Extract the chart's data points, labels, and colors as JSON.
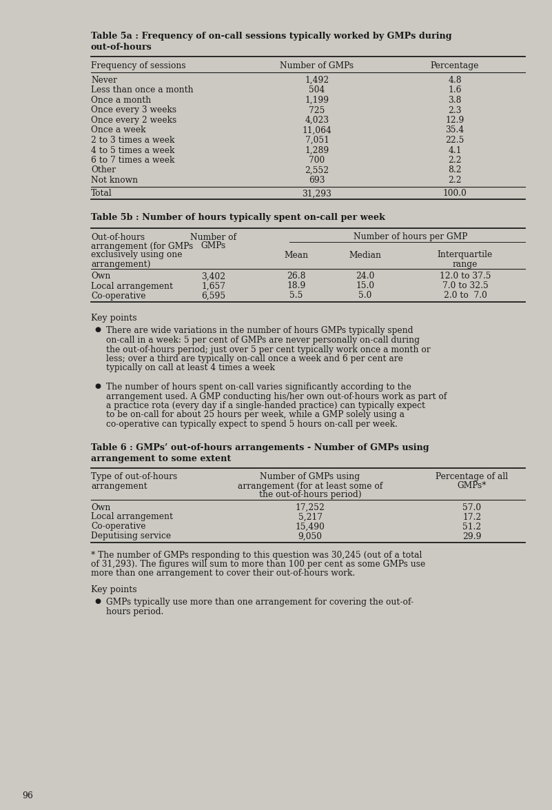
{
  "bg_color": "#ccc9c2",
  "text_color": "#1a1a1a",
  "page_number": "96",
  "table5a_title_line1": "Table 5a : Frequency of on-call sessions typically worked by GMPs during",
  "table5a_title_line2": "out-of-hours",
  "table5a_headers": [
    "Frequency of sessions",
    "Number of GMPs",
    "Percentage"
  ],
  "table5a_rows": [
    [
      "Never",
      "1,492",
      "4.8"
    ],
    [
      "Less than once a month",
      "504",
      "1.6"
    ],
    [
      "Once a month",
      "1,199",
      "3.8"
    ],
    [
      "Once every 3 weeks",
      "725",
      "2.3"
    ],
    [
      "Once every 2 weeks",
      "4,023",
      "12.9"
    ],
    [
      "Once a week",
      "11,064",
      "35.4"
    ],
    [
      "2 to 3 times a week",
      "7,051",
      "22.5"
    ],
    [
      "4 to 5 times a week",
      "1,289",
      "4.1"
    ],
    [
      "6 to 7 times a week",
      "700",
      "2.2"
    ],
    [
      "Other",
      "2,552",
      "8.2"
    ],
    [
      "Not known",
      "693",
      "2.2"
    ]
  ],
  "table5a_total": [
    "Total",
    "31,293",
    "100.0"
  ],
  "table5b_title": "Table 5b : Number of hours typically spent on-call per week",
  "table5b_rows": [
    [
      "Own",
      "3,402",
      "26.8",
      "24.0",
      "12.0 to 37.5"
    ],
    [
      "Local arrangement",
      "1,657",
      "18.9",
      "15.0",
      "7.0 to 32.5"
    ],
    [
      "Co-operative",
      "6,595",
      "5.5",
      "5.0",
      "2.0 to  7.0"
    ]
  ],
  "keypoints1_title": "Key points",
  "keypoints1_bullets": [
    "There are wide variations in the number of hours GMPs typically spend on-call in a week: 5 per cent of GMPs are never personally on-call during the out-of-hours period; just over 5 per cent typically work once a month or less; over a third are typically on-call once a week and 6 per cent are typically on call at least 4 times a week",
    "The number of hours spent on-call varies significantly according to the arrangement used. A GMP conducting his/her own out-of-hours work as part of a practice rota (every day if a single-handed practice) can typically expect to be on-call for about 25 hours per week, while a GMP solely using a co-operative can typically expect to spend 5 hours on-call per week."
  ],
  "table6_title_line1": "Table 6 : GMPs’ out-of-hours arrangements - Number of GMPs using",
  "table6_title_line2": "arrangement to some extent",
  "table6_col1_header": "Type of out-of-hours\narrangement",
  "table6_col2_header_line1": "Number of GMPs using",
  "table6_col2_header_line2": "arrangement (for at least some of",
  "table6_col2_header_line3": "the out-of-hours period)",
  "table6_col3_header": "Percentage of all\nGMPs*",
  "table6_rows": [
    [
      "Own",
      "17,252",
      "57.0"
    ],
    [
      "Local arrangement",
      "5,217",
      "17.2"
    ],
    [
      "Co-operative",
      "15,490",
      "51.2"
    ],
    [
      "Deputising service",
      "9,050",
      "29.9"
    ]
  ],
  "table6_footnote_lines": [
    "* The number of GMPs responding to this question was 30,245 (out of a total",
    "of 31,293). The figures will sum to more than 100 per cent as some GMPs use",
    "more than one arrangement to cover their out-of-hours work."
  ],
  "keypoints2_title": "Key points",
  "keypoints2_bullet_lines": [
    "GMPs typically use more than one arrangement for covering the out-of-",
    "hours period."
  ]
}
